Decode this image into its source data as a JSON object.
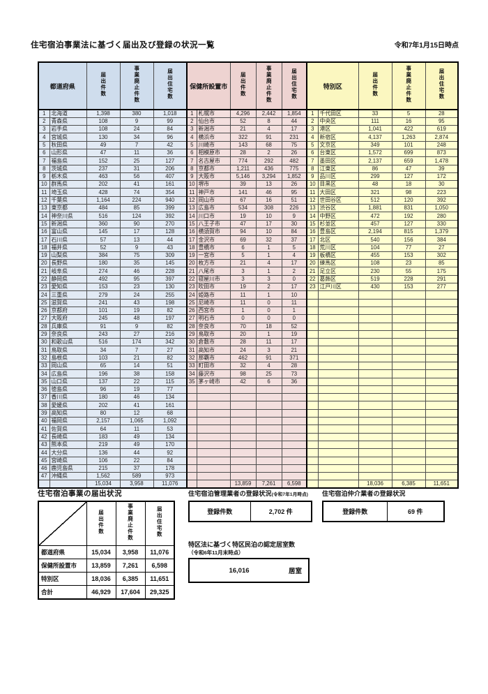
{
  "page": {
    "title": "住宅宿泊事業法に基づく届出及び登録の状況一覧",
    "date_note": "令和7年1月15日時点",
    "section_colors": {
      "prefecture": "#dce6f1",
      "city": "#f2dcdb",
      "ward": "#ffffcc"
    }
  },
  "main_table": {
    "grid_rows": 48,
    "sections": [
      {
        "key": "prefecture",
        "name_header": "都道府県",
        "col_headers": [
          "届出件数",
          "事業廃止件数",
          "届出住宅数"
        ],
        "rows": [
          [
            "1",
            "北海道",
            "1,398",
            "380",
            "1,018"
          ],
          [
            "2",
            "青森県",
            "108",
            "9",
            "99"
          ],
          [
            "3",
            "岩手県",
            "108",
            "24",
            "84"
          ],
          [
            "4",
            "宮城県",
            "130",
            "34",
            "96"
          ],
          [
            "5",
            "秋田県",
            "49",
            "7",
            "42"
          ],
          [
            "6",
            "山形県",
            "47",
            "11",
            "36"
          ],
          [
            "7",
            "福島県",
            "152",
            "25",
            "127"
          ],
          [
            "8",
            "茨城県",
            "237",
            "31",
            "206"
          ],
          [
            "9",
            "栃木県",
            "463",
            "56",
            "407"
          ],
          [
            "10",
            "群馬県",
            "202",
            "41",
            "161"
          ],
          [
            "11",
            "埼玉県",
            "428",
            "74",
            "354"
          ],
          [
            "12",
            "千葉県",
            "1,164",
            "224",
            "940"
          ],
          [
            "13",
            "東京都",
            "484",
            "85",
            "399"
          ],
          [
            "14",
            "神奈川県",
            "516",
            "124",
            "392"
          ],
          [
            "15",
            "新潟県",
            "360",
            "90",
            "270"
          ],
          [
            "16",
            "富山県",
            "145",
            "17",
            "128"
          ],
          [
            "17",
            "石川県",
            "57",
            "13",
            "44"
          ],
          [
            "18",
            "福井県",
            "52",
            "9",
            "43"
          ],
          [
            "19",
            "山梨県",
            "384",
            "75",
            "309"
          ],
          [
            "20",
            "長野県",
            "180",
            "35",
            "145"
          ],
          [
            "21",
            "岐阜県",
            "274",
            "46",
            "228"
          ],
          [
            "22",
            "静岡県",
            "492",
            "95",
            "397"
          ],
          [
            "23",
            "愛知県",
            "153",
            "23",
            "130"
          ],
          [
            "24",
            "三重県",
            "279",
            "24",
            "255"
          ],
          [
            "25",
            "滋賀県",
            "241",
            "43",
            "198"
          ],
          [
            "26",
            "京都府",
            "101",
            "19",
            "82"
          ],
          [
            "27",
            "大阪府",
            "245",
            "48",
            "197"
          ],
          [
            "28",
            "兵庫県",
            "91",
            "9",
            "82"
          ],
          [
            "29",
            "奈良県",
            "243",
            "27",
            "216"
          ],
          [
            "30",
            "和歌山県",
            "516",
            "174",
            "342"
          ],
          [
            "31",
            "鳥取県",
            "34",
            "7",
            "27"
          ],
          [
            "32",
            "島根県",
            "103",
            "21",
            "82"
          ],
          [
            "33",
            "岡山県",
            "65",
            "14",
            "51"
          ],
          [
            "34",
            "広島県",
            "196",
            "38",
            "158"
          ],
          [
            "35",
            "山口県",
            "137",
            "22",
            "115"
          ],
          [
            "36",
            "徳島県",
            "96",
            "19",
            "77"
          ],
          [
            "37",
            "香川県",
            "180",
            "46",
            "134"
          ],
          [
            "38",
            "愛媛県",
            "202",
            "41",
            "161"
          ],
          [
            "39",
            "高知県",
            "80",
            "12",
            "68"
          ],
          [
            "40",
            "福岡県",
            "2,157",
            "1,065",
            "1,092"
          ],
          [
            "41",
            "佐賀県",
            "64",
            "11",
            "53"
          ],
          [
            "42",
            "長崎県",
            "183",
            "49",
            "134"
          ],
          [
            "43",
            "熊本県",
            "219",
            "49",
            "170"
          ],
          [
            "44",
            "大分県",
            "136",
            "44",
            "92"
          ],
          [
            "45",
            "宮崎県",
            "106",
            "22",
            "84"
          ],
          [
            "46",
            "鹿児島県",
            "215",
            "37",
            "178"
          ],
          [
            "47",
            "沖縄県",
            "1,562",
            "589",
            "973"
          ]
        ],
        "total": [
          "15,034",
          "3,958",
          "11,076"
        ]
      },
      {
        "key": "city",
        "name_header": "保健所設置市",
        "col_headers": [
          "届出件数",
          "事業廃止件数",
          "届出住宅数"
        ],
        "rows": [
          [
            "1",
            "札幌市",
            "4,296",
            "2,442",
            "1,854"
          ],
          [
            "2",
            "仙台市",
            "52",
            "8",
            "44"
          ],
          [
            "3",
            "新潟市",
            "21",
            "4",
            "17"
          ],
          [
            "4",
            "横浜市",
            "322",
            "91",
            "231"
          ],
          [
            "5",
            "川崎市",
            "143",
            "68",
            "75"
          ],
          [
            "6",
            "相模原市",
            "28",
            "2",
            "26"
          ],
          [
            "7",
            "名古屋市",
            "774",
            "292",
            "482"
          ],
          [
            "8",
            "京都市",
            "1,211",
            "436",
            "775"
          ],
          [
            "9",
            "大阪市",
            "5,146",
            "3,294",
            "1,852"
          ],
          [
            "10",
            "堺市",
            "39",
            "13",
            "26"
          ],
          [
            "11",
            "神戸市",
            "141",
            "46",
            "95"
          ],
          [
            "12",
            "岡山市",
            "67",
            "16",
            "51"
          ],
          [
            "13",
            "広島市",
            "534",
            "308",
            "226"
          ],
          [
            "14",
            "川口市",
            "19",
            "10",
            "9"
          ],
          [
            "15",
            "八王子市",
            "47",
            "17",
            "30"
          ],
          [
            "16",
            "横須賀市",
            "94",
            "10",
            "84"
          ],
          [
            "17",
            "金沢市",
            "69",
            "32",
            "37"
          ],
          [
            "18",
            "豊橋市",
            "6",
            "1",
            "5"
          ],
          [
            "19",
            "一宮市",
            "5",
            "1",
            "4"
          ],
          [
            "20",
            "枚方市",
            "21",
            "4",
            "17"
          ],
          [
            "21",
            "八尾市",
            "3",
            "1",
            "2"
          ],
          [
            "22",
            "寝屋川市",
            "3",
            "3",
            "0"
          ],
          [
            "23",
            "吹田市",
            "19",
            "2",
            "17"
          ],
          [
            "24",
            "姫路市",
            "11",
            "1",
            "10"
          ],
          [
            "25",
            "尼崎市",
            "11",
            "0",
            "11"
          ],
          [
            "26",
            "西宮市",
            "1",
            "0",
            "1"
          ],
          [
            "27",
            "明石市",
            "0",
            "0",
            "0"
          ],
          [
            "28",
            "奈良市",
            "70",
            "18",
            "52"
          ],
          [
            "29",
            "鳥取市",
            "20",
            "1",
            "19"
          ],
          [
            "30",
            "倉敷市",
            "28",
            "11",
            "17"
          ],
          [
            "31",
            "高知市",
            "24",
            "3",
            "21"
          ],
          [
            "32",
            "那覇市",
            "462",
            "91",
            "371"
          ],
          [
            "33",
            "町田市",
            "32",
            "4",
            "28"
          ],
          [
            "34",
            "藤沢市",
            "98",
            "25",
            "73"
          ],
          [
            "35",
            "茅ヶ崎市",
            "42",
            "6",
            "36"
          ]
        ],
        "total": [
          "13,859",
          "7,261",
          "6,598"
        ]
      },
      {
        "key": "ward",
        "name_header": "特別区",
        "col_headers": [
          "届出件数",
          "事業廃止件数",
          "届出住宅数"
        ],
        "rows": [
          [
            "1",
            "千代田区",
            "33",
            "5",
            "28"
          ],
          [
            "2",
            "中央区",
            "111",
            "16",
            "95"
          ],
          [
            "3",
            "港区",
            "1,041",
            "422",
            "619"
          ],
          [
            "4",
            "新宿区",
            "4,137",
            "1,263",
            "2,874"
          ],
          [
            "5",
            "文京区",
            "349",
            "101",
            "248"
          ],
          [
            "6",
            "台東区",
            "1,572",
            "699",
            "873"
          ],
          [
            "7",
            "墨田区",
            "2,137",
            "659",
            "1,478"
          ],
          [
            "8",
            "江東区",
            "86",
            "47",
            "39"
          ],
          [
            "9",
            "品川区",
            "299",
            "127",
            "172"
          ],
          [
            "10",
            "目黒区",
            "48",
            "18",
            "30"
          ],
          [
            "11",
            "大田区",
            "321",
            "98",
            "223"
          ],
          [
            "12",
            "世田谷区",
            "512",
            "120",
            "392"
          ],
          [
            "13",
            "渋谷区",
            "1,881",
            "831",
            "1,050"
          ],
          [
            "14",
            "中野区",
            "472",
            "192",
            "280"
          ],
          [
            "15",
            "杉並区",
            "457",
            "127",
            "330"
          ],
          [
            "16",
            "豊島区",
            "2,194",
            "815",
            "1,379"
          ],
          [
            "17",
            "北区",
            "540",
            "156",
            "384"
          ],
          [
            "18",
            "荒川区",
            "104",
            "77",
            "27"
          ],
          [
            "19",
            "板橋区",
            "455",
            "153",
            "302"
          ],
          [
            "20",
            "練馬区",
            "108",
            "23",
            "85"
          ],
          [
            "21",
            "足立区",
            "230",
            "55",
            "175"
          ],
          [
            "22",
            "葛飾区",
            "519",
            "228",
            "291"
          ],
          [
            "23",
            "江戸川区",
            "430",
            "153",
            "277"
          ]
        ],
        "total": [
          "18,036",
          "6,385",
          "11,651"
        ]
      }
    ]
  },
  "summary": {
    "title": "住宅宿泊事業の届出状況",
    "col_headers": [
      "届出件数",
      "事業廃止件数",
      "届出住宅数"
    ],
    "rows": [
      [
        "都道府県",
        "15,034",
        "3,958",
        "11,076"
      ],
      [
        "保健所設置市",
        "13,859",
        "7,261",
        "6,598"
      ],
      [
        "特別区",
        "18,036",
        "6,385",
        "11,651"
      ],
      [
        "合計",
        "46,929",
        "17,604",
        "29,325"
      ]
    ]
  },
  "manager_registration": {
    "title": "住宅宿泊管理業者の登録状況",
    "date_note": "(令和7年1月時点)",
    "label": "登録件数",
    "value": "2,702",
    "unit": "件"
  },
  "broker_registration": {
    "title": "住宅宿泊仲介業者の登録状況",
    "label": "登録件数",
    "value": "69",
    "unit": "件"
  },
  "tokku": {
    "title": "特区法に基づく特区民泊の認定居室数",
    "date_note": "（令和6年11月末時点）",
    "value": "16,016",
    "unit": "居室"
  }
}
